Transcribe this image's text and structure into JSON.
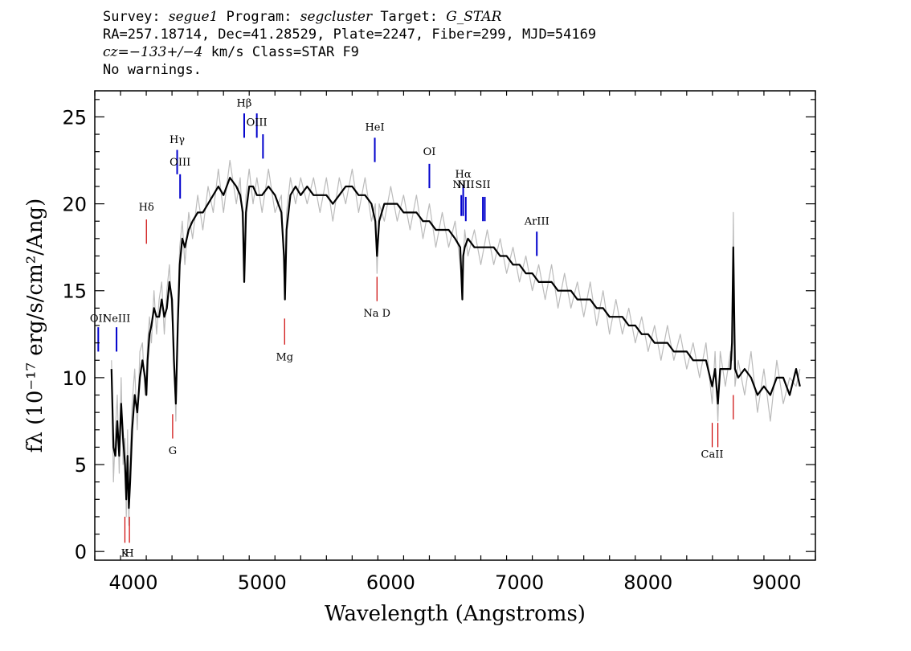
{
  "header": {
    "line1": {
      "survey_label": "Survey: ",
      "survey": "segue1",
      "program_label": " Program: ",
      "program": "segcluster",
      "target_label": " Target: ",
      "target": "G_STAR"
    },
    "line2": "RA=257.18714, Dec=41.28529, Plate=2247, Fiber=299, MJD=54169",
    "line3": {
      "cz": "cz=−133+/−4",
      "rest": " km/s Class=STAR F9"
    },
    "line4": "No warnings."
  },
  "chart_data": {
    "type": "line",
    "xlabel": "Wavelength (Angstroms)",
    "ylabel": "fλ (10⁻¹⁷ erg/s/cm²/Ang)",
    "xlim": [
      3700,
      9300
    ],
    "ylim": [
      -0.5,
      26.5
    ],
    "x_ticks": [
      4000,
      5000,
      6000,
      7000,
      8000,
      9000
    ],
    "y_ticks": [
      0,
      5,
      10,
      15,
      20,
      25
    ],
    "grid": false,
    "series": [
      {
        "role": "smoothed-flux",
        "color": "#000000",
        "x": [
          3830,
          3845,
          3860,
          3875,
          3890,
          3905,
          3920,
          3935,
          3945,
          3955,
          3965,
          3975,
          3990,
          4010,
          4030,
          4050,
          4070,
          4090,
          4101,
          4110,
          4125,
          4140,
          4160,
          4180,
          4200,
          4220,
          4240,
          4260,
          4280,
          4300,
          4315,
          4330,
          4345,
          4360,
          4380,
          4400,
          4430,
          4460,
          4500,
          4540,
          4580,
          4620,
          4660,
          4700,
          4750,
          4800,
          4830,
          4850,
          4861,
          4875,
          4900,
          4930,
          4960,
          5000,
          5050,
          5100,
          5150,
          5170,
          5178,
          5190,
          5220,
          5260,
          5300,
          5350,
          5400,
          5450,
          5500,
          5550,
          5600,
          5650,
          5700,
          5750,
          5800,
          5850,
          5880,
          5893,
          5910,
          5950,
          6000,
          6050,
          6100,
          6150,
          6200,
          6250,
          6300,
          6350,
          6400,
          6450,
          6500,
          6540,
          6556,
          6563,
          6575,
          6600,
          6650,
          6700,
          6750,
          6800,
          6850,
          6900,
          6950,
          7000,
          7050,
          7100,
          7150,
          7200,
          7250,
          7300,
          7350,
          7400,
          7450,
          7500,
          7550,
          7600,
          7650,
          7700,
          7750,
          7800,
          7850,
          7900,
          7950,
          8000,
          8050,
          8100,
          8150,
          8200,
          8250,
          8300,
          8350,
          8400,
          8450,
          8498,
          8520,
          8542,
          8560,
          8600,
          8640,
          8652,
          8662,
          8675,
          8700,
          8750,
          8800,
          8850,
          8900,
          8950,
          9000,
          9050,
          9100,
          9150,
          9180
        ],
        "y": [
          10.5,
          6.0,
          5.5,
          7.5,
          5.5,
          8.5,
          6.5,
          5.0,
          3.0,
          5.5,
          2.5,
          4.0,
          7.0,
          9.0,
          8.0,
          10.0,
          11.0,
          10.0,
          9.0,
          11.0,
          12.5,
          13.0,
          14.0,
          13.5,
          13.5,
          14.5,
          13.5,
          14.0,
          15.5,
          14.5,
          11.0,
          8.5,
          13.0,
          16.5,
          18.0,
          17.5,
          18.5,
          19.0,
          19.5,
          19.5,
          20.0,
          20.5,
          21.0,
          20.5,
          21.5,
          21.0,
          20.5,
          19.5,
          15.5,
          19.5,
          21.0,
          21.0,
          20.5,
          20.5,
          21.0,
          20.5,
          19.5,
          17.0,
          14.5,
          18.5,
          20.5,
          21.0,
          20.5,
          21.0,
          20.5,
          20.5,
          20.5,
          20.0,
          20.5,
          21.0,
          21.0,
          20.5,
          20.5,
          20.0,
          19.0,
          17.0,
          19.0,
          20.0,
          20.0,
          20.0,
          19.5,
          19.5,
          19.5,
          19.0,
          19.0,
          18.5,
          18.5,
          18.5,
          18.0,
          17.5,
          14.5,
          17.0,
          17.5,
          18.0,
          17.5,
          17.5,
          17.5,
          17.5,
          17.0,
          17.0,
          16.5,
          16.5,
          16.0,
          16.0,
          15.5,
          15.5,
          15.5,
          15.0,
          15.0,
          15.0,
          14.5,
          14.5,
          14.5,
          14.0,
          14.0,
          13.5,
          13.5,
          13.5,
          13.0,
          13.0,
          12.5,
          12.5,
          12.0,
          12.0,
          12.0,
          11.5,
          11.5,
          11.5,
          11.0,
          11.0,
          11.0,
          9.5,
          10.5,
          8.5,
          10.5,
          10.5,
          10.5,
          12.0,
          17.5,
          10.5,
          10.0,
          10.5,
          10.0,
          9.0,
          9.5,
          9.0,
          10.0,
          10.0,
          9.0,
          10.5,
          9.5
        ]
      },
      {
        "role": "raw-flux",
        "color": "#bbbbbb",
        "x": [
          3830,
          3845,
          3860,
          3875,
          3890,
          3905,
          3920,
          3935,
          3945,
          3955,
          3965,
          3975,
          3990,
          4010,
          4030,
          4050,
          4070,
          4090,
          4101,
          4110,
          4125,
          4140,
          4160,
          4180,
          4200,
          4220,
          4240,
          4260,
          4280,
          4300,
          4315,
          4330,
          4345,
          4360,
          4380,
          4400,
          4430,
          4460,
          4500,
          4540,
          4580,
          4620,
          4660,
          4700,
          4750,
          4800,
          4830,
          4850,
          4861,
          4875,
          4900,
          4930,
          4960,
          5000,
          5050,
          5100,
          5150,
          5170,
          5178,
          5190,
          5220,
          5260,
          5300,
          5350,
          5400,
          5450,
          5500,
          5550,
          5600,
          5650,
          5700,
          5750,
          5800,
          5850,
          5880,
          5893,
          5910,
          5950,
          6000,
          6050,
          6100,
          6150,
          6200,
          6250,
          6300,
          6350,
          6400,
          6450,
          6500,
          6540,
          6556,
          6563,
          6575,
          6600,
          6650,
          6700,
          6750,
          6800,
          6850,
          6900,
          6950,
          7000,
          7050,
          7100,
          7150,
          7200,
          7250,
          7300,
          7350,
          7400,
          7450,
          7500,
          7550,
          7600,
          7650,
          7700,
          7750,
          7800,
          7850,
          7900,
          7950,
          8000,
          8050,
          8100,
          8150,
          8200,
          8250,
          8300,
          8350,
          8400,
          8450,
          8498,
          8520,
          8542,
          8560,
          8600,
          8640,
          8652,
          8662,
          8675,
          8700,
          8750,
          8800,
          8850,
          8900,
          8950,
          9000,
          9050,
          9100,
          9150,
          9180
        ],
        "y": [
          11.0,
          4.0,
          7.0,
          9.0,
          4.5,
          10.0,
          5.0,
          6.5,
          2.0,
          7.0,
          1.5,
          5.5,
          8.5,
          10.5,
          7.0,
          11.5,
          12.0,
          9.0,
          10.0,
          12.0,
          13.5,
          12.0,
          15.0,
          12.5,
          14.5,
          15.5,
          12.5,
          15.0,
          16.5,
          13.5,
          12.0,
          7.5,
          14.0,
          17.5,
          19.0,
          16.5,
          19.5,
          18.0,
          20.5,
          18.5,
          21.0,
          19.5,
          22.0,
          19.5,
          22.5,
          20.0,
          21.5,
          18.5,
          16.5,
          20.5,
          22.0,
          20.0,
          21.5,
          19.5,
          22.0,
          19.5,
          20.5,
          16.0,
          15.5,
          19.5,
          21.5,
          20.0,
          21.5,
          20.0,
          21.5,
          19.5,
          21.5,
          19.0,
          21.5,
          20.0,
          22.0,
          19.5,
          21.5,
          19.0,
          20.0,
          16.0,
          20.0,
          19.0,
          21.0,
          19.0,
          20.5,
          18.5,
          20.5,
          18.0,
          20.0,
          17.5,
          19.5,
          17.5,
          19.0,
          16.5,
          15.5,
          16.5,
          18.5,
          17.0,
          18.5,
          16.5,
          18.5,
          16.5,
          18.0,
          16.0,
          17.5,
          15.5,
          17.0,
          15.0,
          16.5,
          14.5,
          16.5,
          14.0,
          16.0,
          14.0,
          15.5,
          13.5,
          15.5,
          13.0,
          15.0,
          12.5,
          14.5,
          12.5,
          14.0,
          12.0,
          13.5,
          11.5,
          13.0,
          11.0,
          13.0,
          11.0,
          12.5,
          10.5,
          12.0,
          10.0,
          12.0,
          8.5,
          11.5,
          7.5,
          11.5,
          9.5,
          11.5,
          11.0,
          19.5,
          9.5,
          11.0,
          9.0,
          11.5,
          8.0,
          10.5,
          7.5,
          11.0,
          8.5,
          10.0,
          9.5,
          10.5
        ]
      }
    ],
    "line_markers": [
      {
        "label": "Hβ",
        "x": 4861,
        "color": "blue",
        "y_from": 23.8,
        "y_to": 25.2,
        "label_y": 25.6
      },
      {
        "label": "OIII",
        "x": 4959,
        "color": "blue",
        "y_from": 23.8,
        "y_to": 25.2,
        "label_y": 24.5
      },
      {
        "label": "OIII",
        "x": 5007,
        "color": "blue",
        "y_from": 22.6,
        "y_to": 24.0,
        "label_y": null
      },
      {
        "label": "Hγ",
        "x": 4340,
        "color": "blue",
        "y_from": 21.7,
        "y_to": 23.1,
        "label_y": 23.5
      },
      {
        "label": "OIII",
        "x": 4363,
        "color": "blue",
        "y_from": 20.3,
        "y_to": 21.7,
        "label_y": 22.2
      },
      {
        "label": "HeI",
        "x": 5876,
        "color": "blue",
        "y_from": 22.4,
        "y_to": 23.8,
        "label_y": 24.2
      },
      {
        "label": "OI",
        "x": 6300,
        "color": "blue",
        "y_from": 20.9,
        "y_to": 22.3,
        "label_y": 22.8
      },
      {
        "label": "Hα",
        "x": 6563,
        "color": "blue",
        "y_from": 19.3,
        "y_to": 21.1,
        "label_y": 21.5
      },
      {
        "label": "NII",
        "x": 6548,
        "color": "blue",
        "y_from": 19.3,
        "y_to": 20.5,
        "label_y": 20.9
      },
      {
        "label": "NII",
        "x": 6583,
        "color": "blue",
        "y_from": 19.0,
        "y_to": 20.4,
        "label_y": 20.9
      },
      {
        "label": "SII",
        "x": 6716,
        "color": "blue",
        "y_from": 19.0,
        "y_to": 20.4,
        "label_y": 20.9
      },
      {
        "label": "SII",
        "x": 6731,
        "color": "blue",
        "y_from": 19.0,
        "y_to": 20.4,
        "label_y": null
      },
      {
        "label": "ArIII",
        "x": 7135,
        "color": "blue",
        "y_from": 17.0,
        "y_to": 18.4,
        "label_y": 18.8
      },
      {
        "label": "Hδ",
        "x": 4101,
        "color": "red",
        "y_from": 17.7,
        "y_to": 19.1,
        "label_y": 19.6
      },
      {
        "label": "NeIII",
        "x": 3869,
        "color": "blue",
        "y_from": 11.5,
        "y_to": 12.9,
        "label_y": 13.2
      },
      {
        "label": "OII",
        "x": 3727,
        "color": "blue",
        "y_from": 11.5,
        "y_to": 12.9,
        "label_y": 13.2
      },
      {
        "label": "K",
        "x": 3934,
        "color": "red",
        "y_from": 0.5,
        "y_to": 2.0,
        "label_y": -0.3
      },
      {
        "label": "H",
        "x": 3969,
        "color": "red",
        "y_from": 0.5,
        "y_to": 2.0,
        "label_y": -0.3
      },
      {
        "label": "G",
        "x": 4305,
        "color": "red",
        "y_from": 6.5,
        "y_to": 7.9,
        "label_y": 5.6
      },
      {
        "label": "Mg",
        "x": 5175,
        "color": "red",
        "y_from": 11.9,
        "y_to": 13.4,
        "label_y": 11.0
      },
      {
        "label": "Na D",
        "x": 5893,
        "color": "red",
        "y_from": 14.4,
        "y_to": 15.8,
        "label_y": 13.5
      },
      {
        "label": "CaII",
        "x": 8498,
        "color": "red",
        "y_from": 6.0,
        "y_to": 7.4,
        "label_y": 5.4
      },
      {
        "label": "CaII",
        "x": 8542,
        "color": "red",
        "y_from": 6.0,
        "y_to": 7.4,
        "label_y": null
      },
      {
        "label": "CaII",
        "x": 8662,
        "color": "red",
        "y_from": 7.6,
        "y_to": 9.0,
        "label_y": null
      }
    ]
  }
}
